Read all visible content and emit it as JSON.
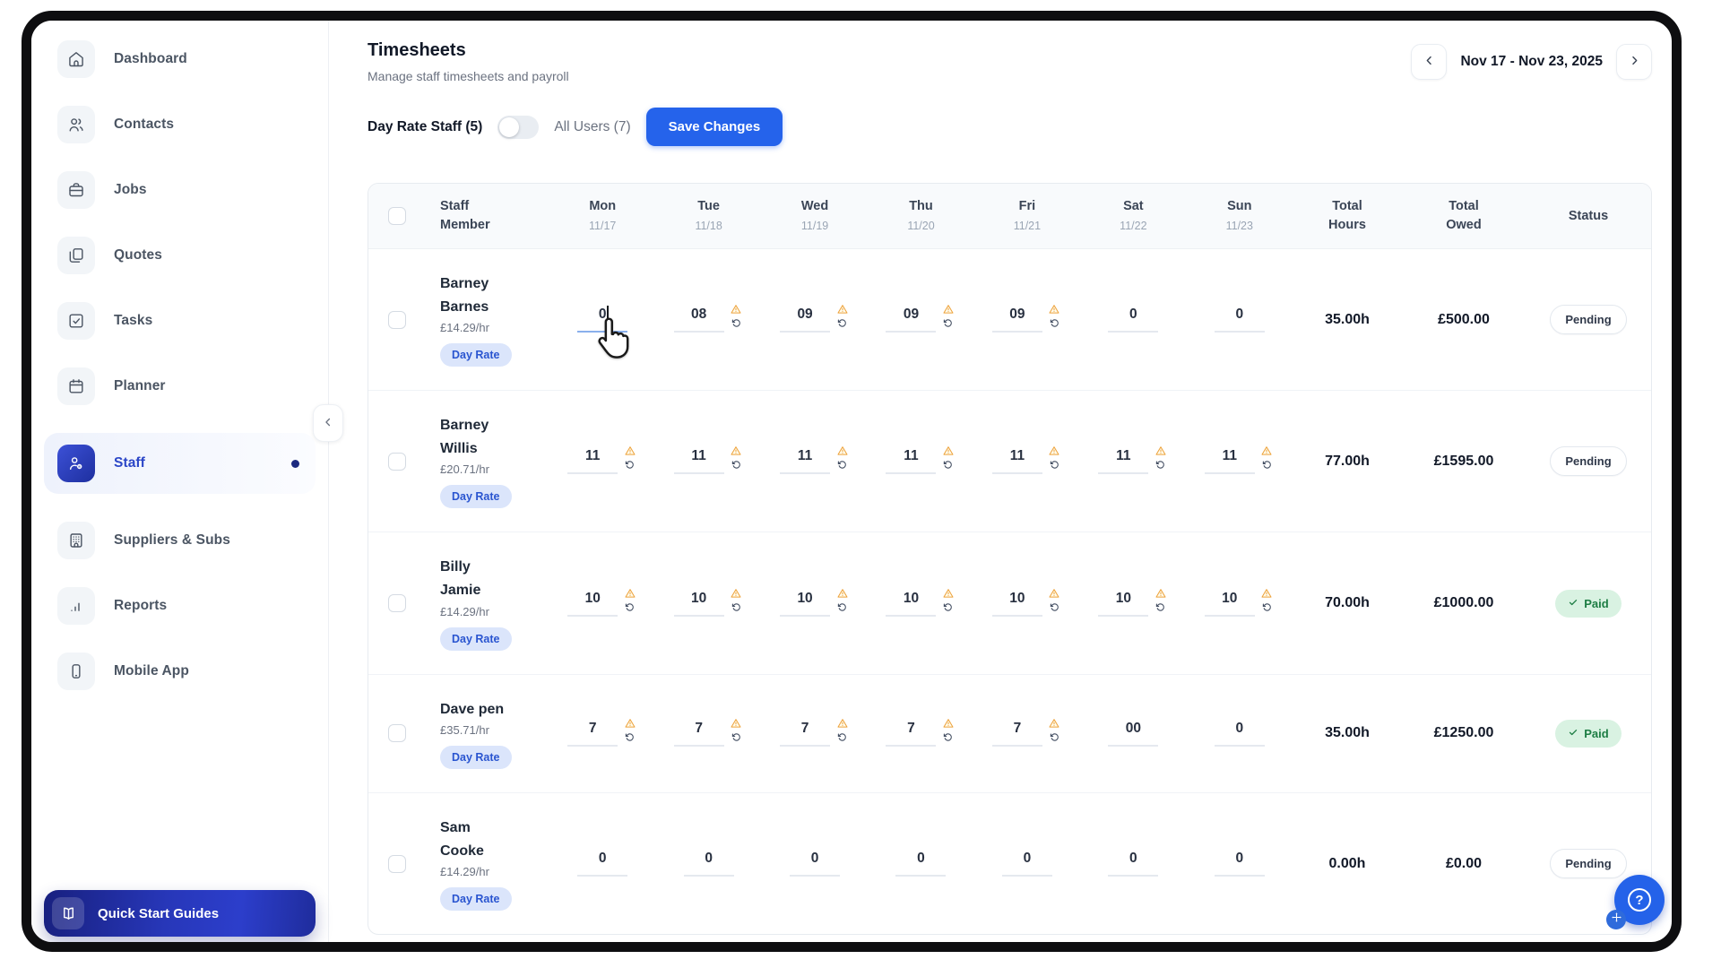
{
  "sidebar": {
    "items": [
      {
        "id": "dashboard",
        "label": "Dashboard",
        "icon": "home-icon",
        "active": false,
        "dot": false
      },
      {
        "id": "contacts",
        "label": "Contacts",
        "icon": "contacts-icon",
        "active": false,
        "dot": false
      },
      {
        "id": "jobs",
        "label": "Jobs",
        "icon": "briefcase-icon",
        "active": false,
        "dot": false
      },
      {
        "id": "quotes",
        "label": "Quotes",
        "icon": "quotes-icon",
        "active": false,
        "dot": false
      },
      {
        "id": "tasks",
        "label": "Tasks",
        "icon": "tasks-icon",
        "active": false,
        "dot": false
      },
      {
        "id": "planner",
        "label": "Planner",
        "icon": "calendar-icon",
        "active": false,
        "dot": false
      },
      {
        "id": "staff",
        "label": "Staff",
        "icon": "staff-icon",
        "active": true,
        "dot": true
      },
      {
        "id": "suppliers",
        "label": "Suppliers & Subs",
        "icon": "building-icon",
        "active": false,
        "dot": false
      },
      {
        "id": "reports",
        "label": "Reports",
        "icon": "bar-chart-icon",
        "active": false,
        "dot": false
      },
      {
        "id": "mobile",
        "label": "Mobile App",
        "icon": "phone-icon",
        "active": false,
        "dot": false
      }
    ],
    "quick_start_label": "Quick Start Guides"
  },
  "header": {
    "title": "Timesheets",
    "subtitle": "Manage staff timesheets and payroll",
    "date_range": "Nov 17 - Nov 23, 2025"
  },
  "controls": {
    "filter_left": "Day Rate Staff (5)",
    "filter_right": "All Users (7)",
    "toggle_state": "left",
    "save_label": "Save Changes"
  },
  "table": {
    "header": {
      "staff": "Staff Member",
      "days": [
        {
          "name": "Mon",
          "date": "11/17"
        },
        {
          "name": "Tue",
          "date": "11/18"
        },
        {
          "name": "Wed",
          "date": "11/19"
        },
        {
          "name": "Thu",
          "date": "11/20"
        },
        {
          "name": "Fri",
          "date": "11/21"
        },
        {
          "name": "Sat",
          "date": "11/22"
        },
        {
          "name": "Sun",
          "date": "11/23"
        }
      ],
      "total_hours": "Total Hours",
      "total_owed": "Total Owed",
      "status": "Status"
    },
    "rows": [
      {
        "name_lines": [
          "Barney",
          "Barnes"
        ],
        "rate": "£14.29/hr",
        "type_badge": "Day Rate",
        "hours": [
          {
            "value": "0",
            "warning": false,
            "focused": true
          },
          {
            "value": "08",
            "warning": true
          },
          {
            "value": "09",
            "warning": true
          },
          {
            "value": "09",
            "warning": true
          },
          {
            "value": "09",
            "warning": true
          },
          {
            "value": "0",
            "warning": false
          },
          {
            "value": "0",
            "warning": false
          }
        ],
        "total_hours": "35.00h",
        "total_owed": "£500.00",
        "status": "Pending"
      },
      {
        "name_lines": [
          "Barney",
          "Willis"
        ],
        "rate": "£20.71/hr",
        "type_badge": "Day Rate",
        "hours": [
          {
            "value": "11",
            "warning": true
          },
          {
            "value": "11",
            "warning": true
          },
          {
            "value": "11",
            "warning": true
          },
          {
            "value": "11",
            "warning": true
          },
          {
            "value": "11",
            "warning": true
          },
          {
            "value": "11",
            "warning": true
          },
          {
            "value": "11",
            "warning": true
          }
        ],
        "total_hours": "77.00h",
        "total_owed": "£1595.00",
        "status": "Pending"
      },
      {
        "name_lines": [
          "Billy",
          "Jamie"
        ],
        "rate": "£14.29/hr",
        "type_badge": "Day Rate",
        "hours": [
          {
            "value": "10",
            "warning": true
          },
          {
            "value": "10",
            "warning": true
          },
          {
            "value": "10",
            "warning": true
          },
          {
            "value": "10",
            "warning": true
          },
          {
            "value": "10",
            "warning": true
          },
          {
            "value": "10",
            "warning": true
          },
          {
            "value": "10",
            "warning": true
          }
        ],
        "total_hours": "70.00h",
        "total_owed": "£1000.00",
        "status": "Paid"
      },
      {
        "name_lines": [
          "Dave pen"
        ],
        "rate": "£35.71/hr",
        "type_badge": "Day Rate",
        "hours": [
          {
            "value": "7",
            "warning": true
          },
          {
            "value": "7",
            "warning": true
          },
          {
            "value": "7",
            "warning": true
          },
          {
            "value": "7",
            "warning": true
          },
          {
            "value": "7",
            "warning": true
          },
          {
            "value": "00",
            "warning": false
          },
          {
            "value": "0",
            "warning": false
          }
        ],
        "total_hours": "35.00h",
        "total_owed": "£1250.00",
        "status": "Paid"
      },
      {
        "name_lines": [
          "Sam",
          "Cooke"
        ],
        "rate": "£14.29/hr",
        "type_badge": "Day Rate",
        "hours": [
          {
            "value": "0",
            "warning": false
          },
          {
            "value": "0",
            "warning": false
          },
          {
            "value": "0",
            "warning": false
          },
          {
            "value": "0",
            "warning": false
          },
          {
            "value": "0",
            "warning": false
          },
          {
            "value": "0",
            "warning": false
          },
          {
            "value": "0",
            "warning": false
          }
        ],
        "total_hours": "0.00h",
        "total_owed": "£0.00",
        "status": "Pending"
      }
    ]
  },
  "help": {
    "question_mark": "?"
  },
  "colors": {
    "accent_blue": "#2563eb",
    "active_indigo": "#2b46c7",
    "warning_amber": "#eda23b",
    "paid_bg": "#d9f2e2",
    "paid_text": "#1d7d44",
    "day_rate_badge_bg": "#dbe5fb",
    "day_rate_badge_text": "#2a55d0"
  }
}
